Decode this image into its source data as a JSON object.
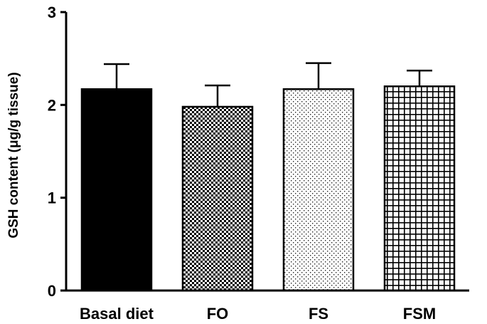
{
  "chart_data": {
    "type": "bar",
    "title": "",
    "xlabel": "",
    "ylabel": "GSH content (μg/g tissue)",
    "ylim": [
      0,
      3
    ],
    "yticks": [
      0,
      1,
      2,
      3
    ],
    "categories": [
      "Basal diet",
      "FO",
      "FS",
      "FSM"
    ],
    "values": [
      2.17,
      1.98,
      2.17,
      2.2
    ],
    "errors": [
      0.27,
      0.23,
      0.28,
      0.17
    ],
    "fills": [
      "solid-black",
      "checkerboard",
      "dots",
      "grid"
    ],
    "grid": false,
    "legend": "none"
  }
}
